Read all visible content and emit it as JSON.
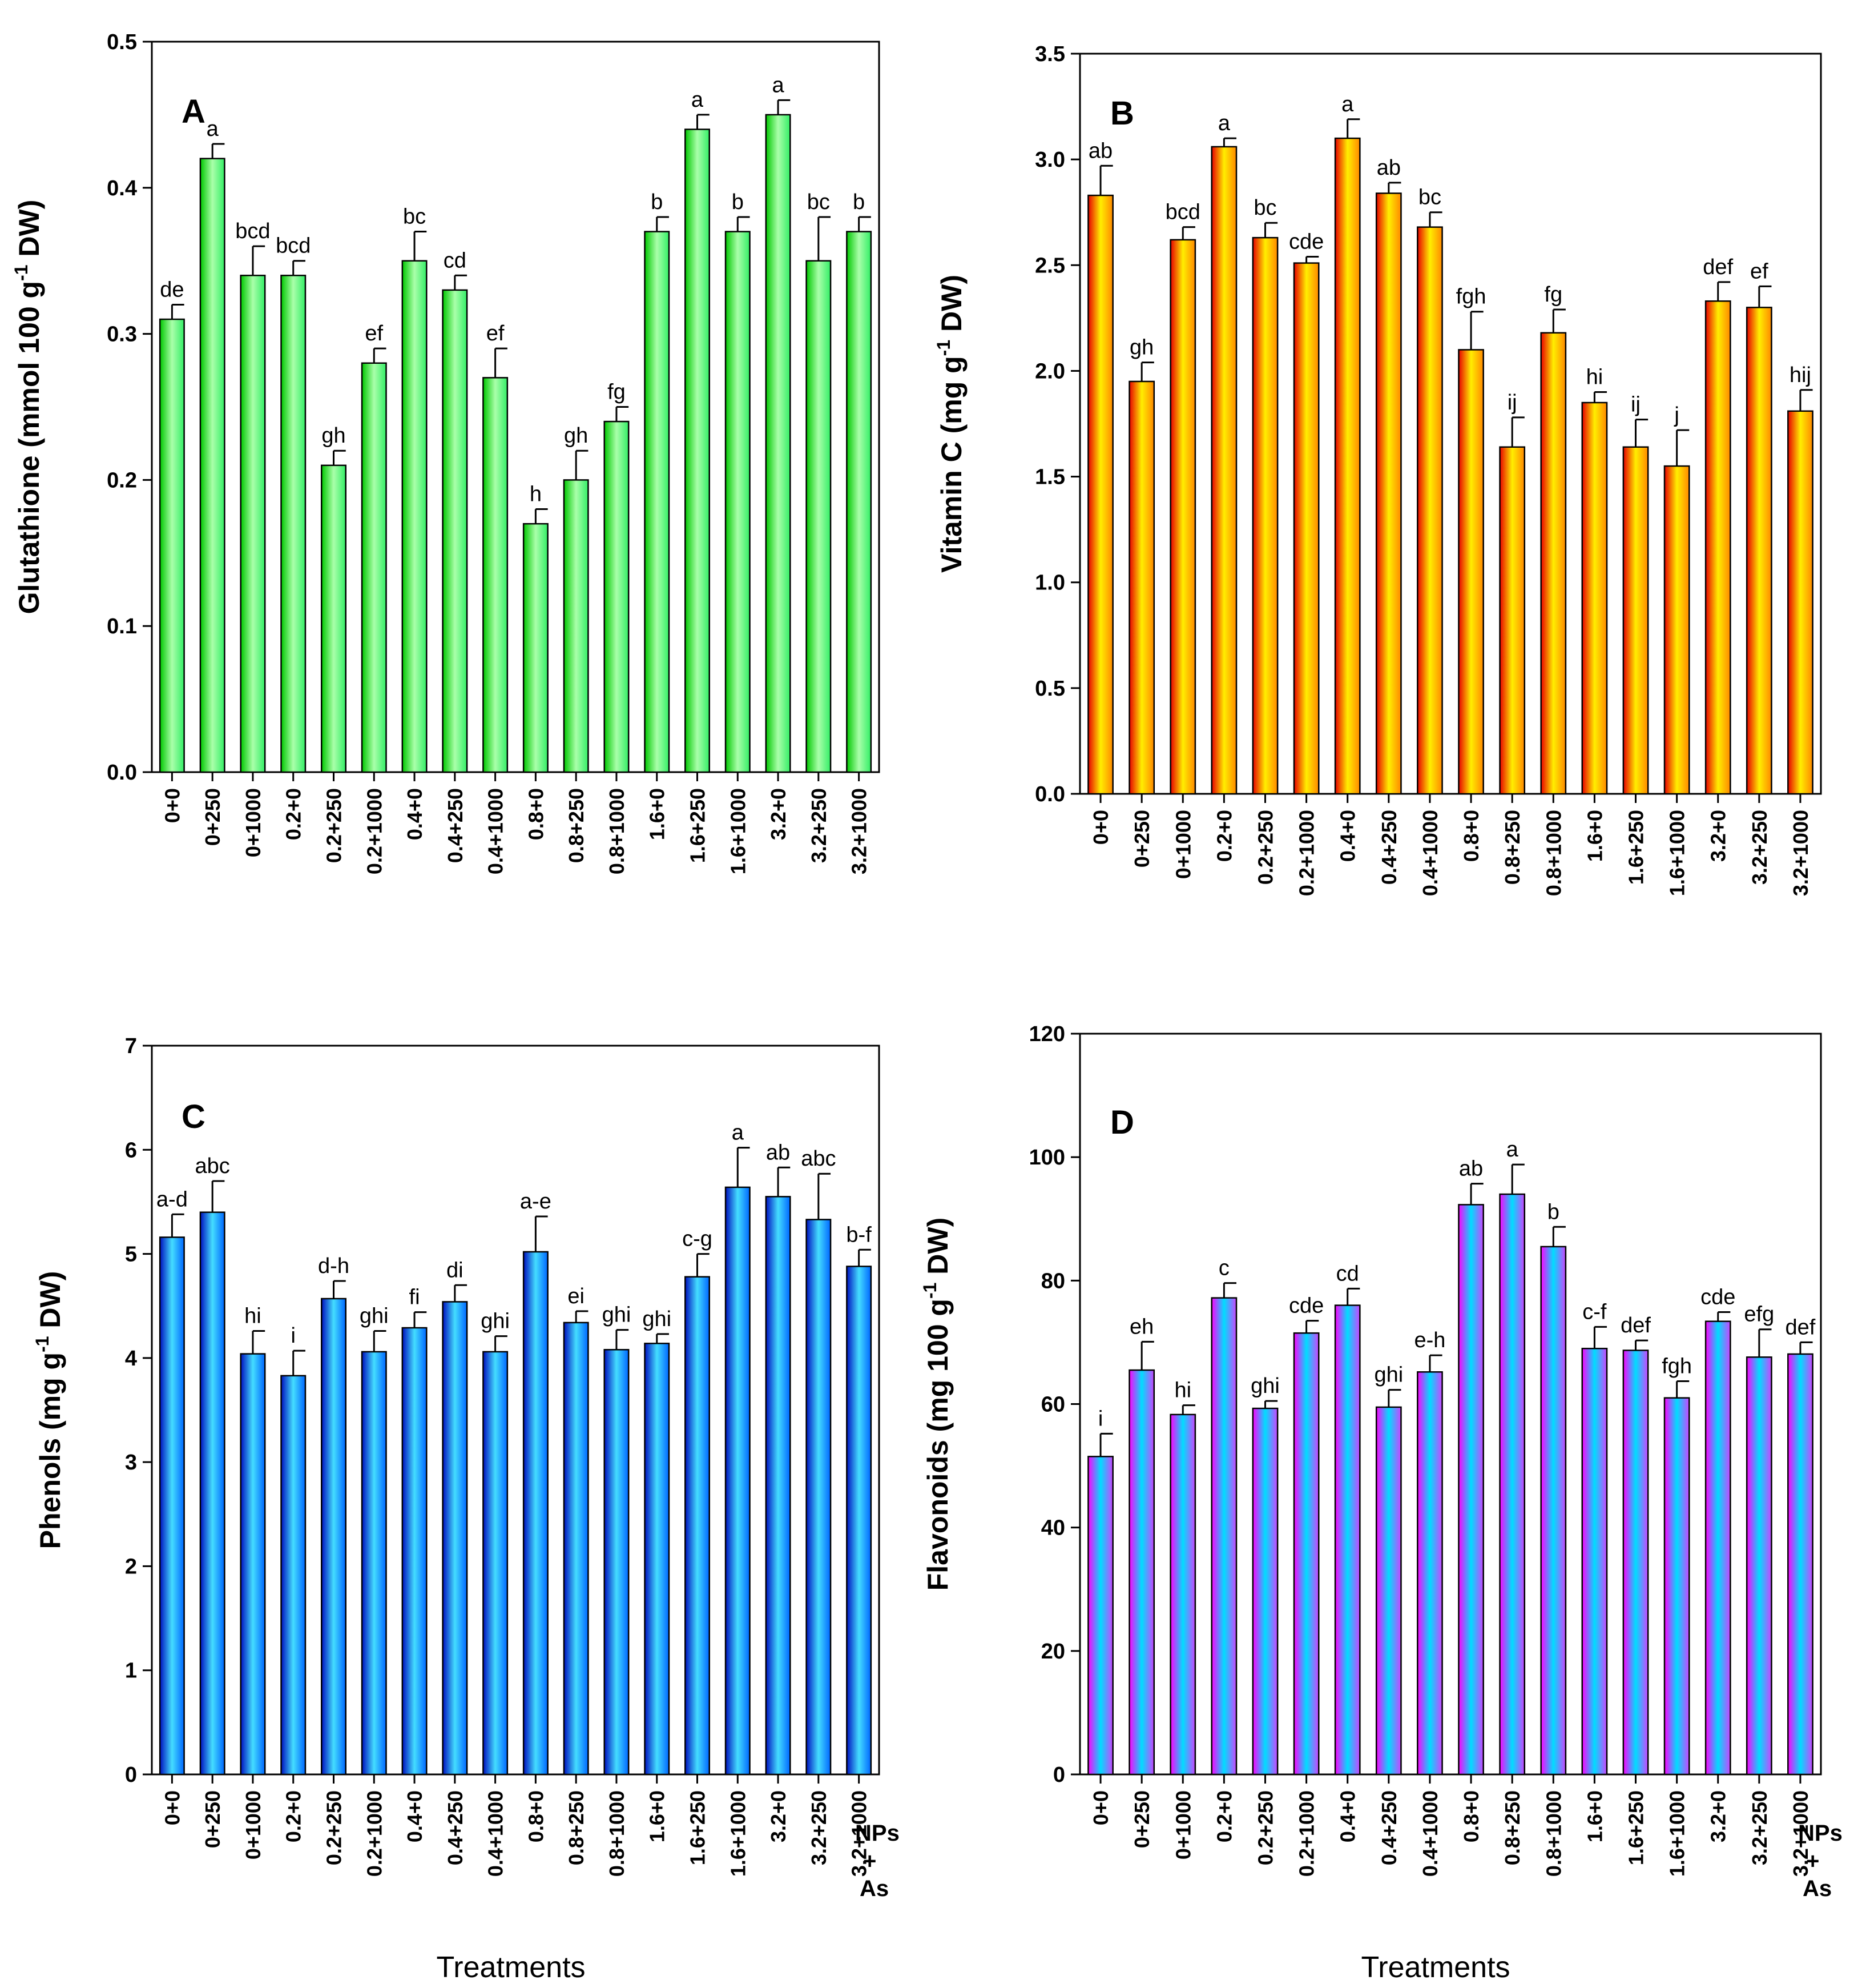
{
  "colors": {
    "green": {
      "edge": "#00c800",
      "mid": "#aaffaa",
      "light": "#33ee66"
    },
    "orange": {
      "edge": "#e80000",
      "mid": "#ffee00",
      "light": "#ff8800"
    },
    "blue": {
      "edge": "#0010c0",
      "mid": "#44ddff",
      "light": "#0066ff"
    },
    "magenta": {
      "edge": "#ff00ff",
      "mid": "#00ddff",
      "light": "#cc44ff"
    }
  },
  "x_axis_title": "Treatments",
  "legend_note": {
    "line1": "NPs",
    "line2": "+",
    "line3": "As"
  },
  "chart_data": [
    {
      "type": "bar",
      "panel": "A",
      "ylabel_main": "Glutathione (mmol 100 g",
      "ylabel_sup": "-1",
      "ylabel_end": " DW)",
      "color": "green",
      "ylim": [
        0,
        0.5
      ],
      "yticks": [
        0,
        0.1,
        0.2,
        0.3,
        0.4,
        0.5
      ],
      "ytick_labels": [
        "0.0",
        "0.1",
        "0.2",
        "0.3",
        "0.4",
        "0.5"
      ],
      "categories": [
        "0+0",
        "0+250",
        "0+1000",
        "0.2+0",
        "0.2+250",
        "0.2+1000",
        "0.4+0",
        "0.4+250",
        "0.4+1000",
        "0.8+0",
        "0.8+250",
        "0.8+1000",
        "1.6+0",
        "1.6+250",
        "1.6+1000",
        "3.2+0",
        "3.2+250",
        "3.2+1000"
      ],
      "values": [
        0.31,
        0.42,
        0.34,
        0.34,
        0.21,
        0.28,
        0.35,
        0.33,
        0.27,
        0.17,
        0.2,
        0.24,
        0.37,
        0.44,
        0.37,
        0.45,
        0.35,
        0.37
      ],
      "errors": [
        0.01,
        0.01,
        0.02,
        0.01,
        0.01,
        0.01,
        0.02,
        0.01,
        0.02,
        0.01,
        0.02,
        0.01,
        0.01,
        0.01,
        0.01,
        0.01,
        0.03,
        0.01
      ],
      "letters": [
        "de",
        "a",
        "bcd",
        "bcd",
        "gh",
        "ef",
        "bc",
        "cd",
        "ef",
        "h",
        "gh",
        "fg",
        "b",
        "a",
        "b",
        "a",
        "bc",
        "b"
      ]
    },
    {
      "type": "bar",
      "panel": "B",
      "ylabel_main": "Vitamin C (mg g",
      "ylabel_sup": "-1",
      "ylabel_end": " DW)",
      "color": "orange",
      "ylim": [
        0,
        3.5
      ],
      "yticks": [
        0,
        0.5,
        1.0,
        1.5,
        2.0,
        2.5,
        3.0,
        3.5
      ],
      "ytick_labels": [
        "0.0",
        "0.5",
        "1.0",
        "1.5",
        "2.0",
        "2.5",
        "3.0",
        "3.5"
      ],
      "categories": [
        "0+0",
        "0+250",
        "0+1000",
        "0.2+0",
        "0.2+250",
        "0.2+1000",
        "0.4+0",
        "0.4+250",
        "0.4+1000",
        "0.8+0",
        "0.8+250",
        "0.8+1000",
        "1.6+0",
        "1.6+250",
        "1.6+1000",
        "3.2+0",
        "3.2+250",
        "3.2+1000"
      ],
      "values": [
        2.83,
        1.95,
        2.62,
        3.06,
        2.63,
        2.51,
        3.1,
        2.84,
        2.68,
        2.1,
        1.64,
        2.18,
        1.85,
        1.64,
        1.55,
        2.33,
        2.3,
        1.81
      ],
      "errors": [
        0.14,
        0.09,
        0.06,
        0.04,
        0.07,
        0.03,
        0.09,
        0.05,
        0.07,
        0.18,
        0.14,
        0.11,
        0.05,
        0.13,
        0.17,
        0.09,
        0.1,
        0.1
      ],
      "letters": [
        "ab",
        "gh",
        "bcd",
        "a",
        "bc",
        "cde",
        "a",
        "ab",
        "bc",
        "fgh",
        "ij",
        "fg",
        "hi",
        "ij",
        "j",
        "def",
        "ef",
        "hij"
      ]
    },
    {
      "type": "bar",
      "panel": "C",
      "ylabel_main": "Phenols (mg g",
      "ylabel_sup": "-1",
      "ylabel_end": " DW)",
      "color": "blue",
      "ylim": [
        0,
        7
      ],
      "yticks": [
        0,
        1,
        2,
        3,
        4,
        5,
        6,
        7
      ],
      "ytick_labels": [
        "0",
        "1",
        "2",
        "3",
        "4",
        "5",
        "6",
        "7"
      ],
      "categories": [
        "0+0",
        "0+250",
        "0+1000",
        "0.2+0",
        "0.2+250",
        "0.2+1000",
        "0.4+0",
        "0.4+250",
        "0.4+1000",
        "0.8+0",
        "0.8+250",
        "0.8+1000",
        "1.6+0",
        "1.6+250",
        "1.6+1000",
        "3.2+0",
        "3.2+250",
        "3.2+1000"
      ],
      "values": [
        5.16,
        5.4,
        4.04,
        3.83,
        4.57,
        4.06,
        4.29,
        4.54,
        4.06,
        5.02,
        4.34,
        4.08,
        4.14,
        4.78,
        5.64,
        5.55,
        5.33,
        4.88
      ],
      "errors": [
        0.22,
        0.3,
        0.22,
        0.24,
        0.17,
        0.2,
        0.15,
        0.16,
        0.15,
        0.34,
        0.11,
        0.19,
        0.09,
        0.22,
        0.38,
        0.28,
        0.44,
        0.16
      ],
      "letters": [
        "a-d",
        "abc",
        "hi",
        "i",
        "d-h",
        "ghi",
        "fi",
        "di",
        "ghi",
        "a-e",
        "ei",
        "ghi",
        "ghi",
        "c-g",
        "a",
        "ab",
        "abc",
        "b-f"
      ]
    },
    {
      "type": "bar",
      "panel": "D",
      "ylabel_main": "Flavonoids (mg 100 g",
      "ylabel_sup": "-1",
      "ylabel_end": " DW)",
      "color": "magenta",
      "ylim": [
        0,
        120
      ],
      "yticks": [
        0,
        20,
        40,
        60,
        80,
        100,
        120
      ],
      "ytick_labels": [
        "0",
        "20",
        "40",
        "60",
        "80",
        "100",
        "120"
      ],
      "categories": [
        "0+0",
        "0+250",
        "0+1000",
        "0.2+0",
        "0.2+250",
        "0.2+1000",
        "0.4+0",
        "0.4+250",
        "0.4+1000",
        "0.8+0",
        "0.8+250",
        "0.8+1000",
        "1.6+0",
        "1.6+250",
        "1.6+1000",
        "3.2+0",
        "3.2+250",
        "3.2+1000"
      ],
      "values": [
        51.5,
        65.5,
        58.3,
        77.2,
        59.3,
        71.5,
        76.0,
        59.5,
        65.2,
        92.3,
        94.0,
        85.5,
        69.0,
        68.7,
        61.0,
        73.4,
        67.6,
        68.1
      ],
      "errors": [
        3.7,
        4.6,
        1.5,
        2.4,
        1.2,
        2.0,
        2.7,
        2.8,
        2.7,
        3.4,
        4.8,
        3.2,
        3.5,
        1.6,
        2.7,
        1.5,
        4.5,
        1.9
      ],
      "letters": [
        "i",
        "eh",
        "hi",
        "c",
        "ghi",
        "cde",
        "cd",
        "ghi",
        "e-h",
        "ab",
        "a",
        "b",
        "c-f",
        "def",
        "fgh",
        "cde",
        "efg",
        "def"
      ]
    }
  ]
}
